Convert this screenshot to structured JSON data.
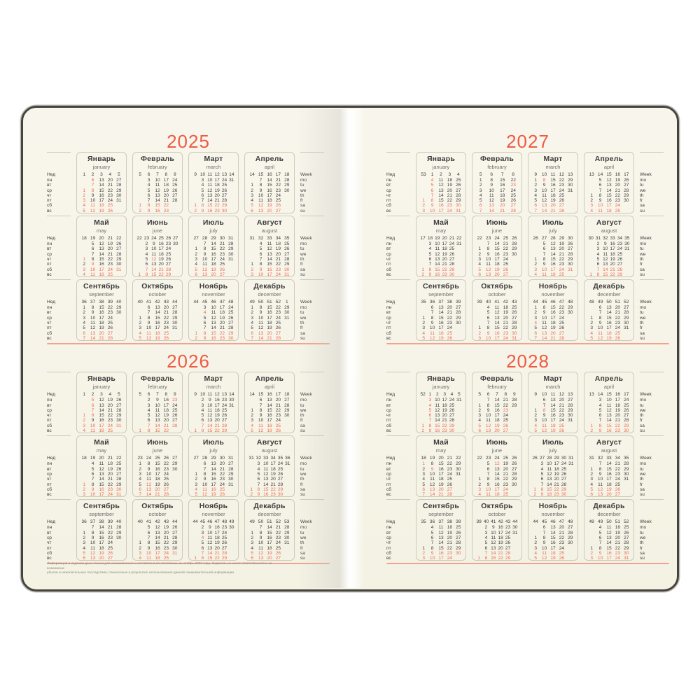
{
  "book": {
    "colors": {
      "accent": "#ee5b43",
      "weekend": "#ed6a50",
      "rule": "#f3a28d",
      "ink": "#3e3e3e",
      "muted": "#6e6e6e",
      "paper": "#f7f5e9",
      "box_border": "#cdc9ba",
      "cover": "#45453e"
    },
    "labels": {
      "week_col_ru": "Нед",
      "week_col_en": "Week",
      "weekdays_ru": [
        "пн",
        "вт",
        "ср",
        "чт",
        "пт",
        "сб",
        "вс"
      ],
      "weekdays_en": [
        "mo",
        "tu",
        "we",
        "th",
        "fr",
        "sa",
        "su"
      ],
      "months": [
        {
          "ru": "Январь",
          "en": "january"
        },
        {
          "ru": "Февраль",
          "en": "february"
        },
        {
          "ru": "Март",
          "en": "march"
        },
        {
          "ru": "Апрель",
          "en": "april"
        },
        {
          "ru": "Май",
          "en": "may"
        },
        {
          "ru": "Июнь",
          "en": "june"
        },
        {
          "ru": "Июль",
          "en": "july"
        },
        {
          "ru": "Август",
          "en": "august"
        },
        {
          "ru": "Сентябрь",
          "en": "september"
        },
        {
          "ru": "Октябрь",
          "en": "october"
        },
        {
          "ru": "Ноябрь",
          "en": "november"
        },
        {
          "ru": "Декабрь",
          "en": "december"
        }
      ]
    },
    "pages": [
      {
        "side": "left",
        "years": [
          {
            "year": "2025",
            "months": [
              {
                "w": [
                  1,
                  2,
                  3,
                  4,
                  5
                ],
                "s": 2,
                "d": 31,
                "h": [
                  1,
                  2,
                  3,
                  6,
                  7,
                  8
                ]
              },
              {
                "w": [
                  5,
                  6,
                  7,
                  8,
                  9
                ],
                "s": 5,
                "d": 28,
                "h": []
              },
              {
                "w": [
                  9,
                  10,
                  11,
                  12,
                  13,
                  14
                ],
                "s": 5,
                "d": 31,
                "h": []
              },
              {
                "w": [
                  14,
                  15,
                  16,
                  17,
                  18
                ],
                "s": 1,
                "d": 30,
                "h": []
              },
              {
                "w": [
                  18,
                  19,
                  20,
                  21,
                  22
                ],
                "s": 3,
                "d": 31,
                "h": [
                  1,
                  9
                ]
              },
              {
                "w": [
                  22,
                  23,
                  24,
                  25,
                  26,
                  27
                ],
                "s": 6,
                "d": 30,
                "h": [
                  12
                ]
              },
              {
                "w": [
                  27,
                  28,
                  29,
                  30,
                  31
                ],
                "s": 1,
                "d": 31,
                "h": []
              },
              {
                "w": [
                  31,
                  32,
                  33,
                  34,
                  35
                ],
                "s": 4,
                "d": 31,
                "h": []
              },
              {
                "w": [
                  36,
                  37,
                  38,
                  39,
                  40
                ],
                "s": 0,
                "d": 30,
                "h": []
              },
              {
                "w": [
                  40,
                  41,
                  42,
                  43,
                  44
                ],
                "s": 2,
                "d": 31,
                "h": []
              },
              {
                "w": [
                  44,
                  45,
                  46,
                  47,
                  48
                ],
                "s": 5,
                "d": 30,
                "h": [
                  4
                ]
              },
              {
                "w": [
                  49,
                  50,
                  51,
                  52,
                  1
                ],
                "s": 0,
                "d": 31,
                "h": []
              }
            ]
          },
          {
            "year": "2026",
            "months": [
              {
                "w": [
                  1,
                  2,
                  3,
                  4,
                  5
                ],
                "s": 3,
                "d": 31,
                "h": [
                  1,
                  2,
                  5,
                  6,
                  7,
                  8
                ]
              },
              {
                "w": [
                  5,
                  6,
                  7,
                  8,
                  9
                ],
                "s": 6,
                "d": 28,
                "h": [
                  23
                ]
              },
              {
                "w": [
                  9,
                  10,
                  11,
                  12,
                  13,
                  14
                ],
                "s": 6,
                "d": 31,
                "h": []
              },
              {
                "w": [
                  14,
                  15,
                  16,
                  17,
                  18
                ],
                "s": 2,
                "d": 30,
                "h": []
              },
              {
                "w": [
                  18,
                  19,
                  20,
                  21,
                  22
                ],
                "s": 4,
                "d": 31,
                "h": [
                  1
                ]
              },
              {
                "w": [
                  23,
                  24,
                  25,
                  26,
                  27
                ],
                "s": 0,
                "d": 30,
                "h": [
                  12
                ]
              },
              {
                "w": [
                  27,
                  28,
                  29,
                  30,
                  31
                ],
                "s": 2,
                "d": 31,
                "h": []
              },
              {
                "w": [
                  31,
                  32,
                  33,
                  34,
                  35,
                  36
                ],
                "s": 5,
                "d": 31,
                "h": []
              },
              {
                "w": [
                  36,
                  37,
                  38,
                  39,
                  40
                ],
                "s": 1,
                "d": 30,
                "h": []
              },
              {
                "w": [
                  40,
                  41,
                  42,
                  43,
                  44
                ],
                "s": 3,
                "d": 31,
                "h": []
              },
              {
                "w": [
                  44,
                  45,
                  46,
                  47,
                  48,
                  49
                ],
                "s": 6,
                "d": 30,
                "h": [
                  4
                ]
              },
              {
                "w": [
                  49,
                  50,
                  51,
                  52,
                  53
                ],
                "s": 1,
                "d": 31,
                "h": []
              }
            ]
          }
        ],
        "footer": {
          "line1": "Информация в издании дана только для ознакомления и составлена по состоянию на ноябрь 2023 года. Издатель не несет ответственность за возможные",
          "line2": "убытки и нежелательные последствия, понесенные в результате использования данной ознакомительной информации."
        }
      },
      {
        "side": "right",
        "years": [
          {
            "year": "2027",
            "months": [
              {
                "w": [
                  53,
                  1,
                  2,
                  3,
                  4
                ],
                "s": 4,
                "d": 31,
                "h": [
                  1,
                  4,
                  5,
                  6,
                  7,
                  8
                ]
              },
              {
                "w": [
                  5,
                  6,
                  7,
                  8
                ],
                "s": 0,
                "d": 28,
                "h": [
                  23
                ]
              },
              {
                "w": [
                  9,
                  10,
                  11,
                  12,
                  13
                ],
                "s": 0,
                "d": 31,
                "h": [
                  8
                ]
              },
              {
                "w": [
                  13,
                  14,
                  15,
                  16,
                  17
                ],
                "s": 3,
                "d": 30,
                "h": []
              },
              {
                "w": [
                  17,
                  18,
                  19,
                  20,
                  21,
                  22
                ],
                "s": 5,
                "d": 31,
                "h": []
              },
              {
                "w": [
                  22,
                  23,
                  24,
                  25,
                  26
                ],
                "s": 1,
                "d": 30,
                "h": []
              },
              {
                "w": [
                  26,
                  27,
                  28,
                  29,
                  30
                ],
                "s": 3,
                "d": 31,
                "h": []
              },
              {
                "w": [
                  30,
                  31,
                  32,
                  33,
                  34,
                  35
                ],
                "s": 6,
                "d": 31,
                "h": []
              },
              {
                "w": [
                  35,
                  36,
                  37,
                  38,
                  39
                ],
                "s": 2,
                "d": 30,
                "h": []
              },
              {
                "w": [
                  39,
                  40,
                  41,
                  42,
                  43
                ],
                "s": 4,
                "d": 31,
                "h": []
              },
              {
                "w": [
                  44,
                  45,
                  46,
                  47,
                  48
                ],
                "s": 0,
                "d": 30,
                "h": [
                  4
                ]
              },
              {
                "w": [
                  48,
                  49,
                  50,
                  51,
                  52
                ],
                "s": 2,
                "d": 31,
                "h": []
              }
            ]
          },
          {
            "year": "2028",
            "months": [
              {
                "w": [
                  52,
                  1,
                  2,
                  3,
                  4,
                  5
                ],
                "s": 5,
                "d": 31,
                "h": [
                  3,
                  4,
                  5,
                  6,
                  7
                ]
              },
              {
                "w": [
                  5,
                  6,
                  7,
                  8,
                  9
                ],
                "s": 1,
                "d": 29,
                "h": [
                  23
                ]
              },
              {
                "w": [
                  9,
                  10,
                  11,
                  12,
                  13
                ],
                "s": 2,
                "d": 31,
                "h": [
                  8
                ]
              },
              {
                "w": [
                  13,
                  14,
                  15,
                  16,
                  17
                ],
                "s": 5,
                "d": 30,
                "h": []
              },
              {
                "w": [
                  18,
                  19,
                  20,
                  21,
                  22
                ],
                "s": 0,
                "d": 31,
                "h": [
                  1,
                  9
                ]
              },
              {
                "w": [
                  22,
                  23,
                  24,
                  25,
                  26
                ],
                "s": 3,
                "d": 30,
                "h": [
                  12
                ]
              },
              {
                "w": [
                  26,
                  27,
                  28,
                  29,
                  30,
                  31
                ],
                "s": 5,
                "d": 31,
                "h": []
              },
              {
                "w": [
                  31,
                  32,
                  33,
                  34,
                  35
                ],
                "s": 1,
                "d": 31,
                "h": []
              },
              {
                "w": [
                  35,
                  36,
                  37,
                  38,
                  39
                ],
                "s": 4,
                "d": 30,
                "h": []
              },
              {
                "w": [
                  39,
                  40,
                  41,
                  42,
                  43,
                  44
                ],
                "s": 6,
                "d": 31,
                "h": []
              },
              {
                "w": [
                  44,
                  45,
                  46,
                  47,
                  48
                ],
                "s": 2,
                "d": 30,
                "h": []
              },
              {
                "w": [
                  48,
                  49,
                  50,
                  51,
                  52
                ],
                "s": 4,
                "d": 31,
                "h": []
              }
            ]
          }
        ]
      }
    ]
  }
}
